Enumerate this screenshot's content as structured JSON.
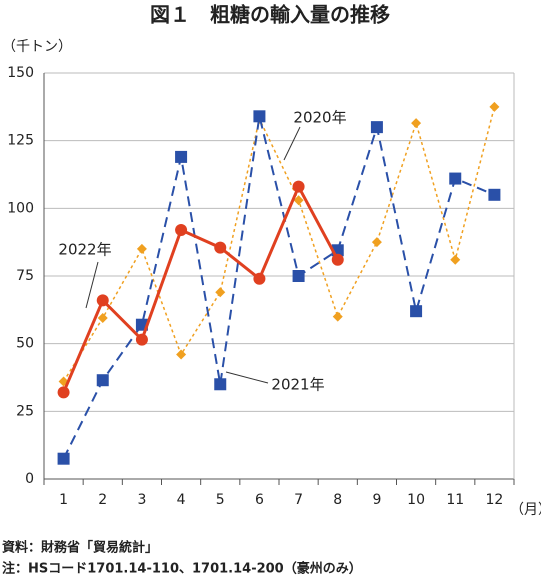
{
  "chart_data": {
    "type": "line",
    "title": "図１　粗糖の輸入量の推移",
    "y_label": "（千トン）",
    "x_label": "（月）",
    "categories": [
      "1",
      "2",
      "3",
      "4",
      "5",
      "6",
      "7",
      "8",
      "9",
      "10",
      "11",
      "12"
    ],
    "series": [
      {
        "name": "2020年",
        "color": "#f0a020",
        "marker": "diamond",
        "dash": "dotted",
        "values": [
          36,
          59.5,
          85,
          46,
          69,
          133,
          103,
          60,
          87.5,
          131.5,
          81,
          137.5
        ]
      },
      {
        "name": "2021年",
        "color": "#2a50a8",
        "marker": "square",
        "dash": "dashed",
        "values": [
          7.5,
          36.5,
          57,
          119,
          35,
          134,
          75,
          84.5,
          130,
          62,
          111,
          105
        ]
      },
      {
        "name": "2022年",
        "color": "#e04020",
        "marker": "circle",
        "dash": "solid",
        "values": [
          32,
          66,
          51.5,
          92,
          85.5,
          74,
          108,
          81,
          null,
          null,
          null,
          null
        ]
      }
    ],
    "ylim": [
      0,
      150
    ],
    "yticks": [
      0,
      25,
      50,
      75,
      100,
      125,
      150
    ],
    "grid": true,
    "notes": [
      "資料：財務省「貿易統計」",
      "注：HSコード1701.14-110、1701.14-200（豪州のみ）"
    ]
  }
}
